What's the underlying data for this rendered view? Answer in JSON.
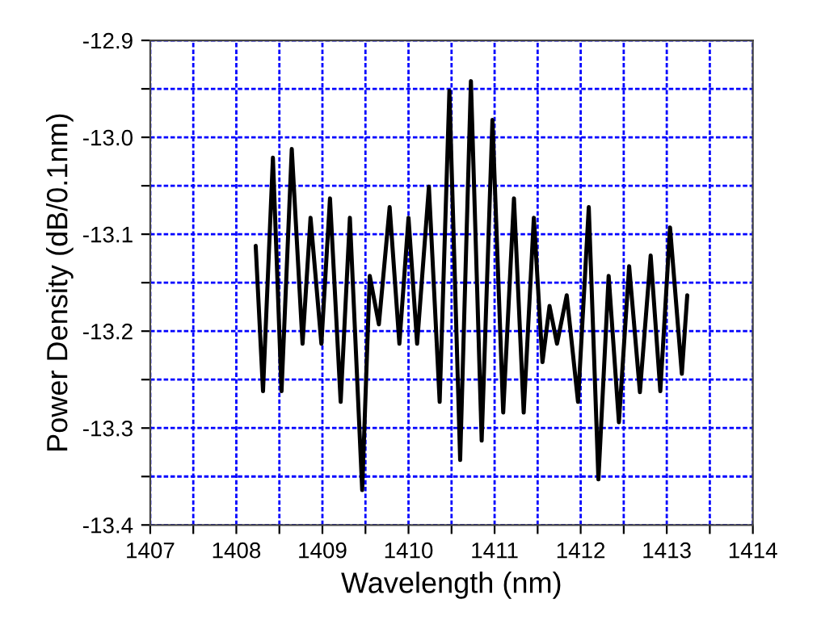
{
  "chart_data": {
    "type": "line",
    "xlabel": "Wavelength (nm)",
    "ylabel": "Power Density (dB/0.1nm)",
    "x": [
      1408.225,
      1408.31,
      1408.425,
      1408.525,
      1408.644,
      1408.769,
      1408.862,
      1408.988,
      1409.088,
      1409.212,
      1409.319,
      1409.462,
      1409.55,
      1409.656,
      1409.781,
      1409.894,
      1410.0,
      1410.1,
      1410.237,
      1410.362,
      1410.475,
      1410.6,
      1410.725,
      1410.85,
      1410.975,
      1411.1,
      1411.225,
      1411.338,
      1411.456,
      1411.556,
      1411.638,
      1411.725,
      1411.838,
      1411.969,
      1412.094,
      1412.206,
      1412.325,
      1412.444,
      1412.563,
      1412.688,
      1412.813,
      1412.925,
      1413.038,
      1413.175,
      1413.238
    ],
    "series": [
      {
        "color": "#000000",
        "values": [
          -13.112,
          -13.262,
          -13.021,
          -13.262,
          -13.012,
          -13.213,
          -13.083,
          -13.213,
          -13.063,
          -13.273,
          -13.083,
          -13.364,
          -13.143,
          -13.193,
          -13.072,
          -13.213,
          -13.083,
          -13.213,
          -13.051,
          -13.273,
          -12.952,
          -13.333,
          -12.942,
          -13.313,
          -12.982,
          -13.284,
          -13.063,
          -13.284,
          -13.083,
          -13.232,
          -13.174,
          -13.213,
          -13.163,
          -13.273,
          -13.072,
          -13.353,
          -13.143,
          -13.294,
          -13.133,
          -13.263,
          -13.122,
          -13.262,
          -13.093,
          -13.244,
          -13.163
        ]
      }
    ],
    "xlim": [
      1407,
      1414
    ],
    "ylim": [
      -13.4,
      -12.9
    ],
    "xticks": [
      1407,
      {
        "value": 1407.5,
        "label": null
      },
      1408,
      {
        "value": 1408.5,
        "label": null
      },
      1409,
      {
        "value": 1409.5,
        "label": null
      },
      1410,
      {
        "value": 1410.5,
        "label": null
      },
      1411,
      {
        "value": 1411.5,
        "label": null
      },
      1412,
      {
        "value": 1412.5,
        "label": null
      },
      1413,
      {
        "value": 1413.5,
        "label": null
      },
      1414
    ],
    "yticks": [
      {
        "value": -13.4,
        "label": "-13.4"
      },
      {
        "value": -13.35,
        "label": null
      },
      {
        "value": -13.3,
        "label": "-13.3"
      },
      {
        "value": -13.25,
        "label": null
      },
      {
        "value": -13.2,
        "label": "-13.2"
      },
      {
        "value": -13.15,
        "label": null
      },
      {
        "value": -13.1,
        "label": "-13.1"
      },
      {
        "value": -13.05,
        "label": null
      },
      {
        "value": -13.0,
        "label": "-13.0"
      },
      {
        "value": -12.95,
        "label": null
      },
      {
        "value": -12.9,
        "label": "-12.9"
      }
    ],
    "grid": true,
    "line_style": "solid",
    "marker": "none"
  }
}
